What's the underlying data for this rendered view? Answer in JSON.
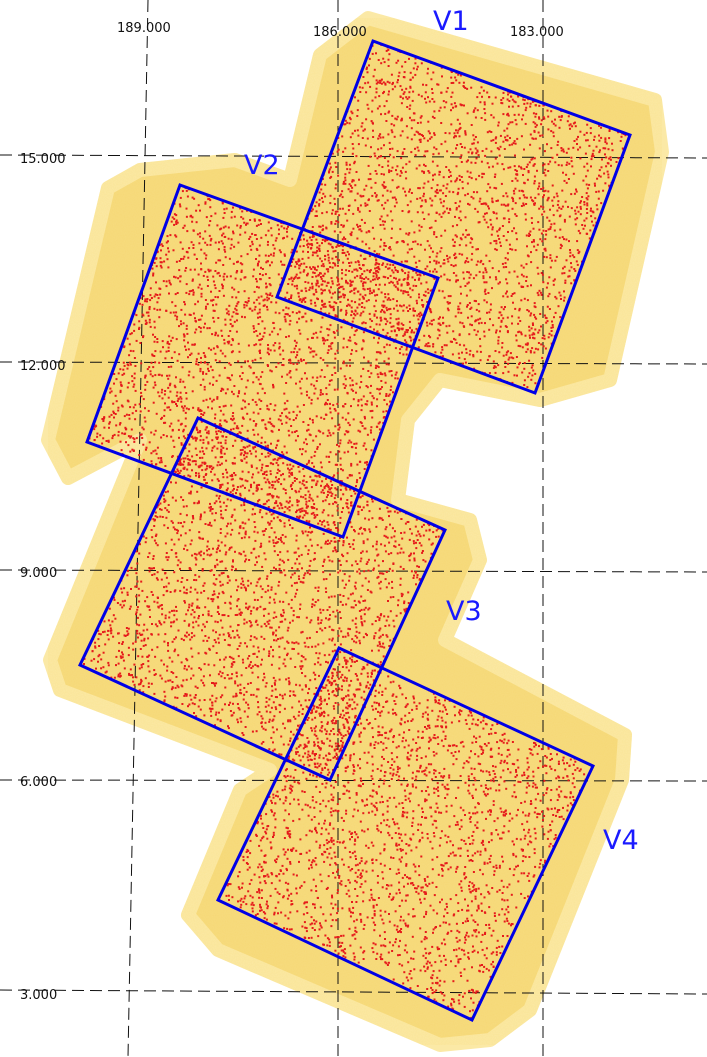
{
  "map": {
    "grid": {
      "x_labels": [
        "189.000",
        "186.000",
        "183.000"
      ],
      "y_labels": [
        "15.000",
        "12.000",
        "9.000",
        "6.000",
        "3.000"
      ]
    },
    "fields": [
      {
        "id": "v1",
        "label": "V1"
      },
      {
        "id": "v2",
        "label": "V2"
      },
      {
        "id": "v3",
        "label": "V3"
      },
      {
        "id": "v4",
        "label": "V4"
      }
    ],
    "colors": {
      "background_mosaic": "#f2d36b",
      "mosaic_edge": "#fbe79a",
      "sources": "#e51b1b",
      "field_outline": "#0000e6",
      "field_label": "#1a1aff",
      "grid": "#111111"
    }
  }
}
